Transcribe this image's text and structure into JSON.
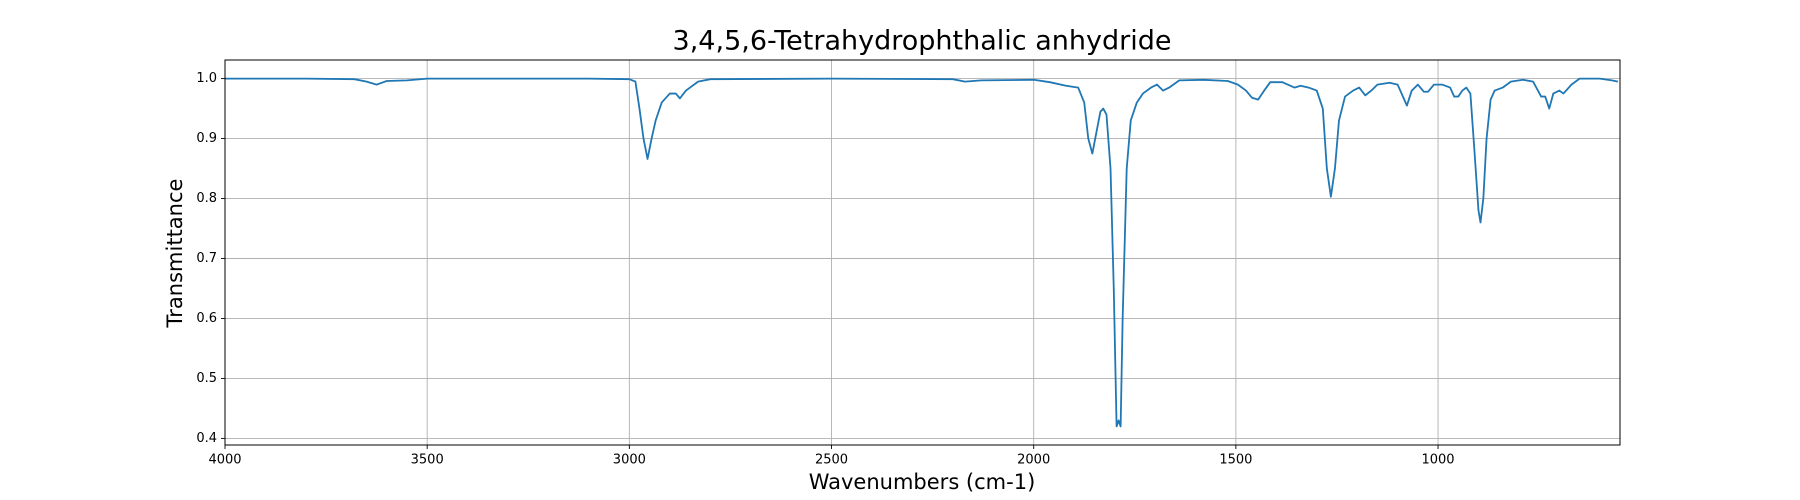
{
  "chart_data": {
    "type": "line",
    "title": "3,4,5,6-Tetrahydrophthalic anhydride",
    "xlabel": "Wavenumbers (cm-1)",
    "ylabel": "Transmittance",
    "color": "#1f77b4",
    "grid": true,
    "xlim": [
      4000,
      550
    ],
    "ylim": [
      0.389,
      1.031
    ],
    "xticks": [
      4000,
      3500,
      3000,
      2500,
      2000,
      1500,
      1000
    ],
    "yticks": [
      0.4,
      0.5,
      0.6,
      0.7,
      0.8,
      0.9,
      {
        "value": 1,
        "label": "1.0"
      }
    ],
    "x": [
      4000,
      3800,
      3680,
      3650,
      3625,
      3600,
      3550,
      3500,
      3100,
      3000,
      2985,
      2975,
      2965,
      2955,
      2945,
      2935,
      2920,
      2900,
      2885,
      2875,
      2860,
      2830,
      2800,
      2500,
      2200,
      2170,
      2130,
      2000,
      1960,
      1920,
      1890,
      1875,
      1865,
      1855,
      1845,
      1835,
      1828,
      1820,
      1810,
      1802,
      1795,
      1790,
      1785,
      1780,
      1770,
      1760,
      1745,
      1730,
      1710,
      1695,
      1680,
      1665,
      1640,
      1580,
      1520,
      1495,
      1475,
      1460,
      1445,
      1430,
      1415,
      1385,
      1355,
      1340,
      1320,
      1300,
      1285,
      1275,
      1265,
      1255,
      1245,
      1230,
      1210,
      1195,
      1180,
      1165,
      1150,
      1120,
      1100,
      1090,
      1077,
      1065,
      1050,
      1035,
      1025,
      1010,
      990,
      970,
      960,
      950,
      940,
      930,
      920,
      910,
      900,
      895,
      888,
      880,
      870,
      860,
      840,
      820,
      790,
      765,
      745,
      735,
      725,
      715,
      700,
      690,
      670,
      650,
      600,
      570,
      555
    ],
    "values": [
      1.0,
      1.0,
      0.999,
      0.995,
      0.99,
      0.996,
      0.997,
      1.0,
      1.0,
      0.999,
      0.995,
      0.95,
      0.9,
      0.866,
      0.9,
      0.93,
      0.96,
      0.975,
      0.975,
      0.967,
      0.98,
      0.995,
      0.999,
      1.0,
      0.999,
      0.995,
      0.997,
      0.998,
      0.994,
      0.988,
      0.985,
      0.96,
      0.9,
      0.875,
      0.91,
      0.945,
      0.95,
      0.94,
      0.85,
      0.65,
      0.42,
      0.43,
      0.42,
      0.6,
      0.85,
      0.93,
      0.96,
      0.975,
      0.985,
      0.99,
      0.98,
      0.985,
      0.997,
      0.998,
      0.996,
      0.99,
      0.98,
      0.968,
      0.965,
      0.98,
      0.994,
      0.994,
      0.985,
      0.988,
      0.985,
      0.98,
      0.95,
      0.85,
      0.803,
      0.85,
      0.93,
      0.97,
      0.98,
      0.985,
      0.972,
      0.98,
      0.99,
      0.993,
      0.99,
      0.975,
      0.955,
      0.98,
      0.99,
      0.978,
      0.978,
      0.99,
      0.99,
      0.985,
      0.97,
      0.97,
      0.98,
      0.985,
      0.975,
      0.88,
      0.78,
      0.76,
      0.8,
      0.9,
      0.965,
      0.98,
      0.985,
      0.995,
      0.998,
      0.995,
      0.97,
      0.97,
      0.95,
      0.975,
      0.98,
      0.975,
      0.99,
      1.0,
      1.0,
      0.997,
      0.995
    ]
  }
}
